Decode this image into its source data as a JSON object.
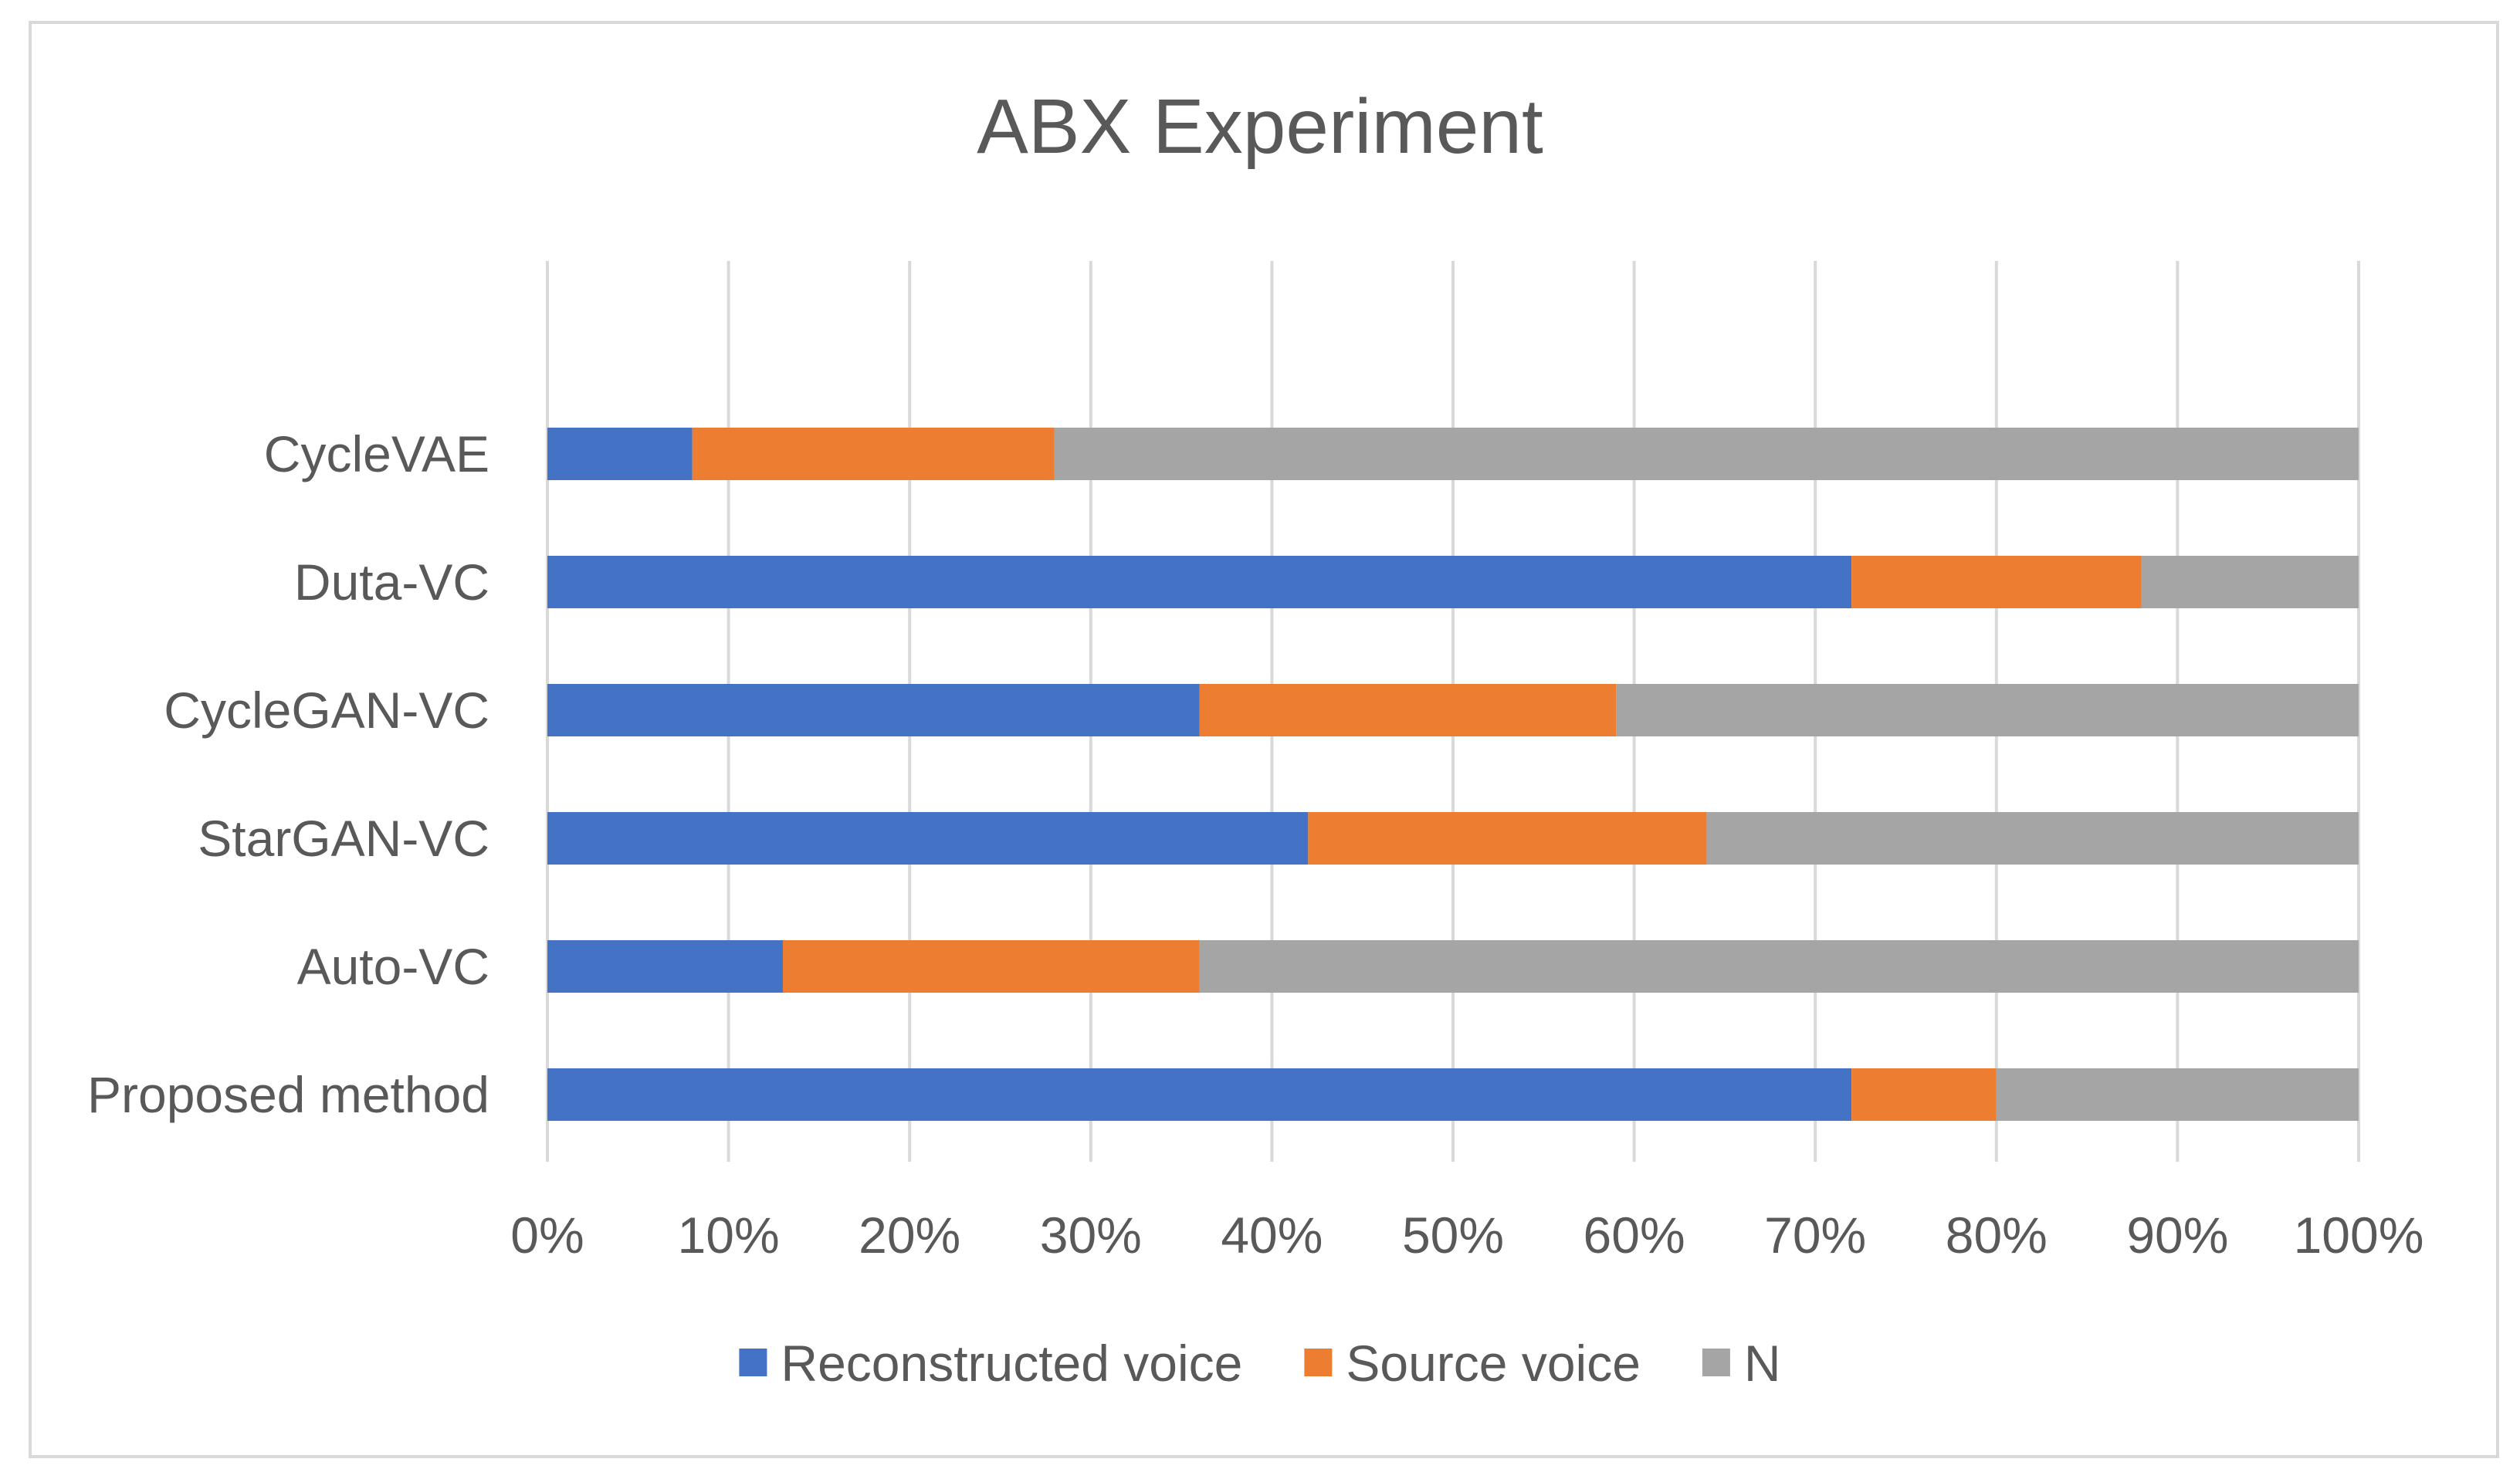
{
  "chart_data": {
    "type": "bar",
    "orientation": "horizontal",
    "stacked": "percent",
    "title": "ABX Experiment",
    "categories": [
      "Proposed method",
      "Auto-VC",
      "StarGAN-VC",
      "CycleGAN-VC",
      "Duta-VC",
      "CycleVAE"
    ],
    "series": [
      {
        "name": "Reconstructed voice",
        "color": "#4472C4",
        "values": [
          72,
          13,
          42,
          36,
          72,
          8
        ]
      },
      {
        "name": "Source voice",
        "color": "#ED7D31",
        "values": [
          8,
          23,
          22,
          23,
          16,
          20
        ]
      },
      {
        "name": "N",
        "color": "#A5A5A5",
        "values": [
          20,
          64,
          36,
          41,
          12,
          72
        ]
      }
    ],
    "xlim": [
      0,
      100
    ],
    "xticks": [
      "0%",
      "10%",
      "20%",
      "30%",
      "40%",
      "50%",
      "60%",
      "70%",
      "80%",
      "90%",
      "100%"
    ],
    "grid": true,
    "legend_position": "bottom"
  }
}
